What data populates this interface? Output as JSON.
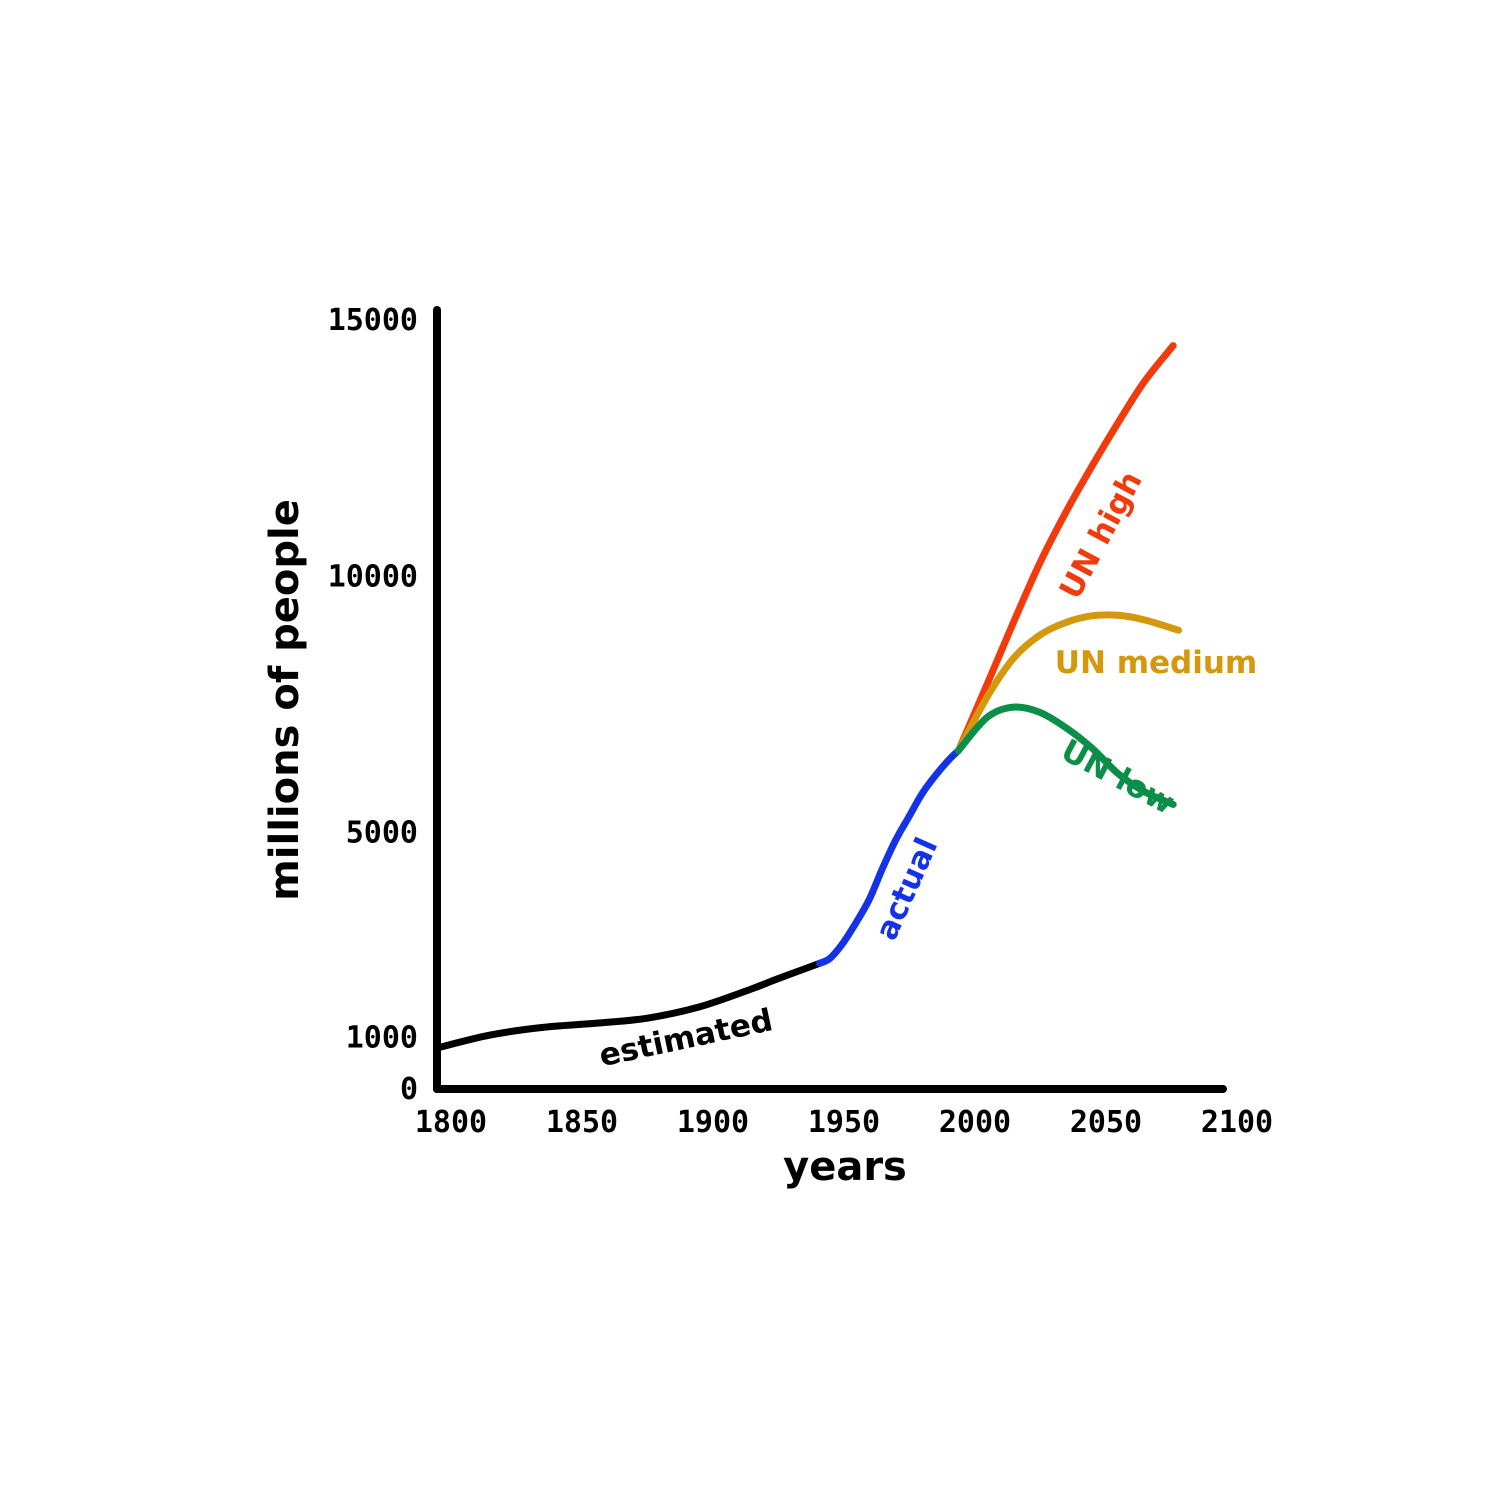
{
  "chart_data": {
    "type": "line",
    "title": "",
    "xlabel": "years",
    "ylabel": "millions of people",
    "xlim": [
      1800,
      2100
    ],
    "ylim": [
      0,
      15000
    ],
    "x_ticks": [
      "1800",
      "1850",
      "1900",
      "1950",
      "2000",
      "2050",
      "2100"
    ],
    "y_ticks": [
      "0",
      "1000",
      "5000",
      "10000",
      "15000"
    ],
    "grid": false,
    "legend": "inline labels",
    "series": [
      {
        "name": "estimated",
        "color": "#000000",
        "points": [
          [
            1800,
            800
          ],
          [
            1820,
            1050
          ],
          [
            1840,
            1200
          ],
          [
            1860,
            1280
          ],
          [
            1880,
            1380
          ],
          [
            1900,
            1600
          ],
          [
            1920,
            1950
          ],
          [
            1930,
            2150
          ],
          [
            1946,
            2450
          ]
        ]
      },
      {
        "name": "actual",
        "color": "#1533e6",
        "points": [
          [
            1946,
            2450
          ],
          [
            1950,
            2550
          ],
          [
            1955,
            2850
          ],
          [
            1960,
            3250
          ],
          [
            1965,
            3700
          ],
          [
            1970,
            4300
          ],
          [
            1975,
            4850
          ],
          [
            1980,
            5300
          ],
          [
            1985,
            5750
          ],
          [
            1990,
            6100
          ],
          [
            1995,
            6400
          ],
          [
            1999,
            6600
          ]
        ]
      },
      {
        "name": "UN high",
        "color": "#f23a0c",
        "points": [
          [
            1999,
            6600
          ],
          [
            2010,
            7900
          ],
          [
            2020,
            9100
          ],
          [
            2030,
            10250
          ],
          [
            2040,
            11250
          ],
          [
            2050,
            12150
          ],
          [
            2060,
            13000
          ],
          [
            2070,
            13800
          ],
          [
            2081,
            14500
          ]
        ]
      },
      {
        "name": "UN medium",
        "color": "#d4980d",
        "points": [
          [
            1999,
            6600
          ],
          [
            2010,
            7650
          ],
          [
            2020,
            8400
          ],
          [
            2030,
            8850
          ],
          [
            2040,
            9100
          ],
          [
            2050,
            9230
          ],
          [
            2060,
            9240
          ],
          [
            2070,
            9150
          ],
          [
            2083,
            8950
          ]
        ]
      },
      {
        "name": "UN low",
        "color": "#0b8f48",
        "points": [
          [
            1999,
            6600
          ],
          [
            2010,
            7250
          ],
          [
            2020,
            7450
          ],
          [
            2030,
            7350
          ],
          [
            2040,
            7050
          ],
          [
            2050,
            6650
          ],
          [
            2060,
            6150
          ],
          [
            2070,
            5800
          ],
          [
            2081,
            5550
          ]
        ]
      }
    ]
  }
}
